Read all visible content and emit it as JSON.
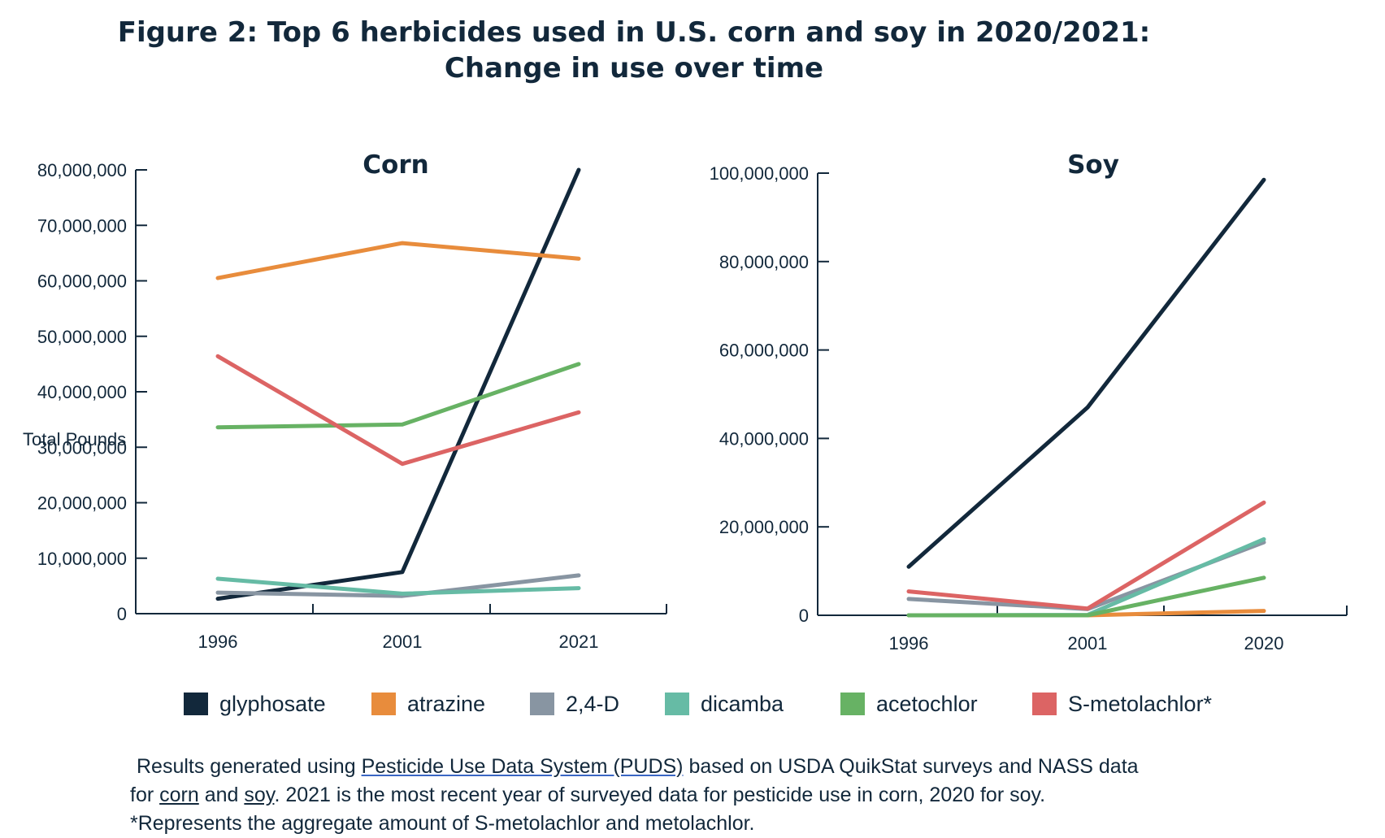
{
  "title": {
    "line1": "Figure 2: Top 6 herbicides used in U.S. corn and soy in 2020/2021:",
    "line2": "Change in use over time"
  },
  "colors": {
    "glyphosate": "#12283b",
    "atrazine": "#e88c3c",
    "2,4-D": "#8895a2",
    "dicamba": "#66bba5",
    "acetochlor": "#67b264",
    "S-metolachlor*": "#dc6464"
  },
  "chart_data": [
    {
      "type": "line",
      "title": "Corn",
      "ylabel": "Total Pounds",
      "xlabel": "",
      "categories": [
        "1996",
        "2001",
        "2021"
      ],
      "ylim": [
        0,
        80000000
      ],
      "yticks": [
        0,
        10000000,
        20000000,
        30000000,
        40000000,
        50000000,
        60000000,
        70000000,
        80000000
      ],
      "ytick_labels": [
        "0",
        "10,000,000",
        "20,000,000",
        "30,000,000",
        "40,000,000",
        "50,000,000",
        "60,000,000",
        "70,000,000",
        "80,000,000"
      ],
      "series": [
        {
          "name": "glyphosate",
          "values": [
            2700000,
            7500000,
            80000000
          ]
        },
        {
          "name": "atrazine",
          "values": [
            60500000,
            66800000,
            64000000
          ]
        },
        {
          "name": "2,4-D",
          "values": [
            3800000,
            3200000,
            6900000
          ]
        },
        {
          "name": "dicamba",
          "values": [
            6300000,
            3600000,
            4600000
          ]
        },
        {
          "name": "acetochlor",
          "values": [
            33600000,
            34100000,
            45000000
          ]
        },
        {
          "name": "S-metolachlor*",
          "values": [
            46400000,
            27000000,
            36300000
          ]
        }
      ]
    },
    {
      "type": "line",
      "title": "Soy",
      "ylabel": "",
      "xlabel": "",
      "categories": [
        "1996",
        "2001",
        "2020"
      ],
      "ylim": [
        0,
        100000000
      ],
      "yticks": [
        0,
        20000000,
        40000000,
        60000000,
        80000000,
        100000000
      ],
      "ytick_labels": [
        "0",
        "20,000,000",
        "40,000,000",
        "60,000,000",
        "80,000,000",
        "100,000,000"
      ],
      "series": [
        {
          "name": "glyphosate",
          "values": [
            11000000,
            47000000,
            98500000
          ]
        },
        {
          "name": "atrazine",
          "values": [
            0,
            0,
            1000000
          ]
        },
        {
          "name": "2,4-D",
          "values": [
            3700000,
            1400000,
            16500000
          ]
        },
        {
          "name": "dicamba",
          "values": [
            0,
            100000,
            17200000
          ]
        },
        {
          "name": "acetochlor",
          "values": [
            0,
            0,
            8500000
          ]
        },
        {
          "name": "S-metolachlor*",
          "values": [
            5400000,
            1500000,
            25500000
          ]
        }
      ]
    }
  ],
  "legend": [
    "glyphosate",
    "atrazine",
    "2,4-D",
    "dicamba",
    "acetochlor",
    "S-metolachlor*"
  ],
  "footnote": {
    "line1_pre": "Results generated using ",
    "link_puds": "Pesticide Use Data System (PUDS)",
    "line1_post": " based on USDA QuikStat surveys and NASS data",
    "line2_pre": "for ",
    "link_corn": "corn",
    "line2_and": " and ",
    "link_soy": "soy",
    "line2_post": ". 2021 is the most recent year of surveyed data for pesticide use in corn, 2020 for soy.",
    "line3": "*Represents the aggregate amount of S-metolachlor and metolachlor."
  }
}
